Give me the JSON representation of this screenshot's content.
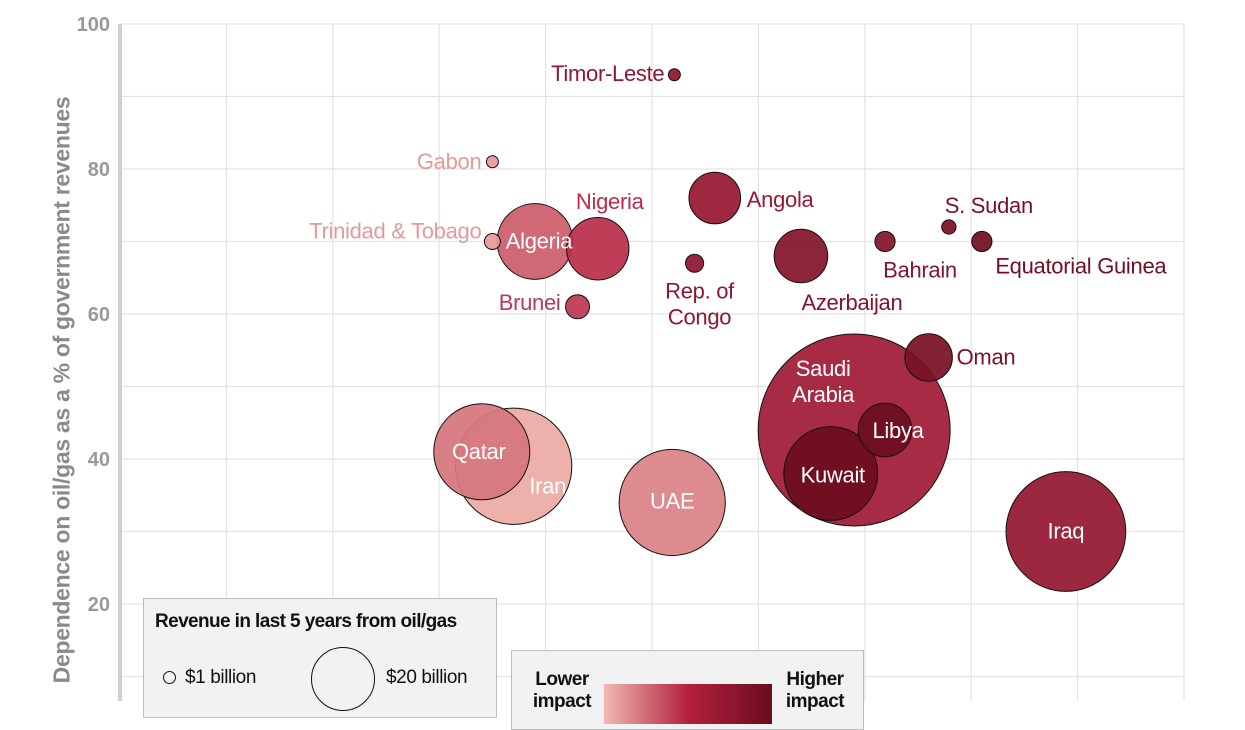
{
  "chart_data": {
    "type": "scatter",
    "title": "",
    "ylabel": "Dependence on oil/gas as a % of government revenues",
    "xlabel": "",
    "ylim": [
      0,
      100
    ],
    "yticks": [
      20,
      40,
      60,
      80,
      100
    ],
    "grid": true,
    "size_legend": {
      "title": "Revenue in last 5 years from oil/gas",
      "small_label": "$1 billion",
      "small_value": 1,
      "large_label": "$20 billion",
      "large_value": 20
    },
    "color_legend": {
      "low_label": "Lower impact",
      "high_label": "Higher impact",
      "colors": [
        "#f2b9b0",
        "#b3203f",
        "#6a0d1e"
      ]
    },
    "points": [
      {
        "name": "Timor-Leste",
        "x": 5.21,
        "y": 93,
        "revenue": 0.7,
        "impact": 0.75
      },
      {
        "name": "Gabon",
        "x": 3.5,
        "y": 81,
        "revenue": 0.7,
        "impact": 0.1
      },
      {
        "name": "Trinidad & Tobago",
        "x": 3.5,
        "y": 70,
        "revenue": 1.25,
        "impact": 0.1
      },
      {
        "name": "Algeria",
        "x": 3.9,
        "y": 70,
        "revenue": 28,
        "impact": 0.3
      },
      {
        "name": "Nigeria",
        "x": 4.49,
        "y": 69,
        "revenue": 19,
        "impact": 0.45
      },
      {
        "name": "Brunei",
        "x": 4.3,
        "y": 61,
        "revenue": 2.8,
        "impact": 0.42
      },
      {
        "name": "Angola",
        "x": 5.59,
        "y": 76,
        "revenue": 13,
        "impact": 0.7
      },
      {
        "name": "Rep. of Congo",
        "x": 5.4,
        "y": 67,
        "revenue": 1.6,
        "impact": 0.75
      },
      {
        "name": "Azerbaijan",
        "x": 6.4,
        "y": 68,
        "revenue": 14,
        "impact": 0.82
      },
      {
        "name": "Bahrain",
        "x": 7.19,
        "y": 70,
        "revenue": 2,
        "impact": 0.82
      },
      {
        "name": "S. Sudan",
        "x": 7.79,
        "y": 72,
        "revenue": 1,
        "impact": 0.9
      },
      {
        "name": "Equatorial Guinea",
        "x": 8.1,
        "y": 70,
        "revenue": 2,
        "impact": 0.95
      },
      {
        "name": "Oman",
        "x": 7.6,
        "y": 54,
        "revenue": 11,
        "impact": 0.9
      },
      {
        "name": "Saudi Arabia",
        "x": 6.9,
        "y": 44,
        "revenue": 180,
        "impact": 0.62
      },
      {
        "name": "Libya",
        "x": 7.19,
        "y": 44,
        "revenue": 14,
        "impact": 0.97
      },
      {
        "name": "Kuwait",
        "x": 6.68,
        "y": 38,
        "revenue": 43,
        "impact": 1.0
      },
      {
        "name": "Qatar",
        "x": 3.4,
        "y": 41,
        "revenue": 45,
        "impact": 0.22
      },
      {
        "name": "Iran",
        "x": 3.7,
        "y": 39,
        "revenue": 66,
        "impact": 0.05
      },
      {
        "name": "UAE",
        "x": 5.19,
        "y": 34,
        "revenue": 55,
        "impact": 0.18
      },
      {
        "name": "Iraq",
        "x": 8.89,
        "y": 30,
        "revenue": 70,
        "impact": 0.72
      }
    ]
  }
}
